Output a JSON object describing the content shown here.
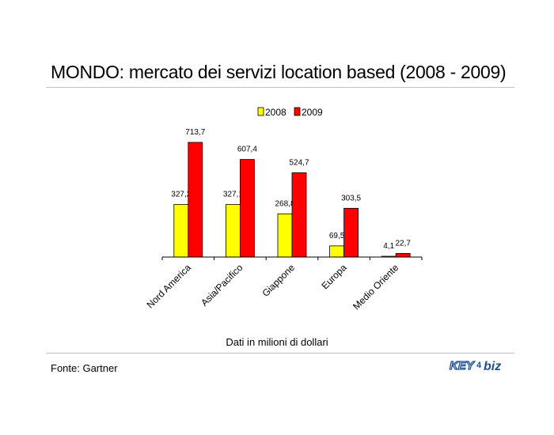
{
  "title": "MONDO: mercato dei servizi location based (2008 - 2009)",
  "xlabel": "Dati in milioni di dollari",
  "source": "Fonte: Gartner",
  "logo": {
    "part1": "KEY",
    "part2": "4",
    "part3": "biz"
  },
  "colors": {
    "2008": "#ffff00",
    "2009": "#ff0000",
    "axis": "#000000"
  },
  "chart_data": {
    "type": "bar",
    "categories": [
      "Nord America",
      "Asia/Pacifico",
      "Giappone",
      "Europa",
      "Medio Oriente"
    ],
    "series": [
      {
        "name": "2008",
        "values": [
          327.2,
          327.1,
          268.8,
          69.5,
          4.1
        ],
        "labels": [
          "327,2",
          "327,1",
          "268,8",
          "69,5",
          "4,1"
        ]
      },
      {
        "name": "2009",
        "values": [
          713.7,
          607.4,
          524.7,
          303.5,
          22.7
        ],
        "labels": [
          "713,7",
          "607,4",
          "524,7",
          "303,5",
          "22,7"
        ]
      }
    ],
    "legend_position": "top",
    "grid": false,
    "ylim": [
      0,
      713.7
    ]
  }
}
